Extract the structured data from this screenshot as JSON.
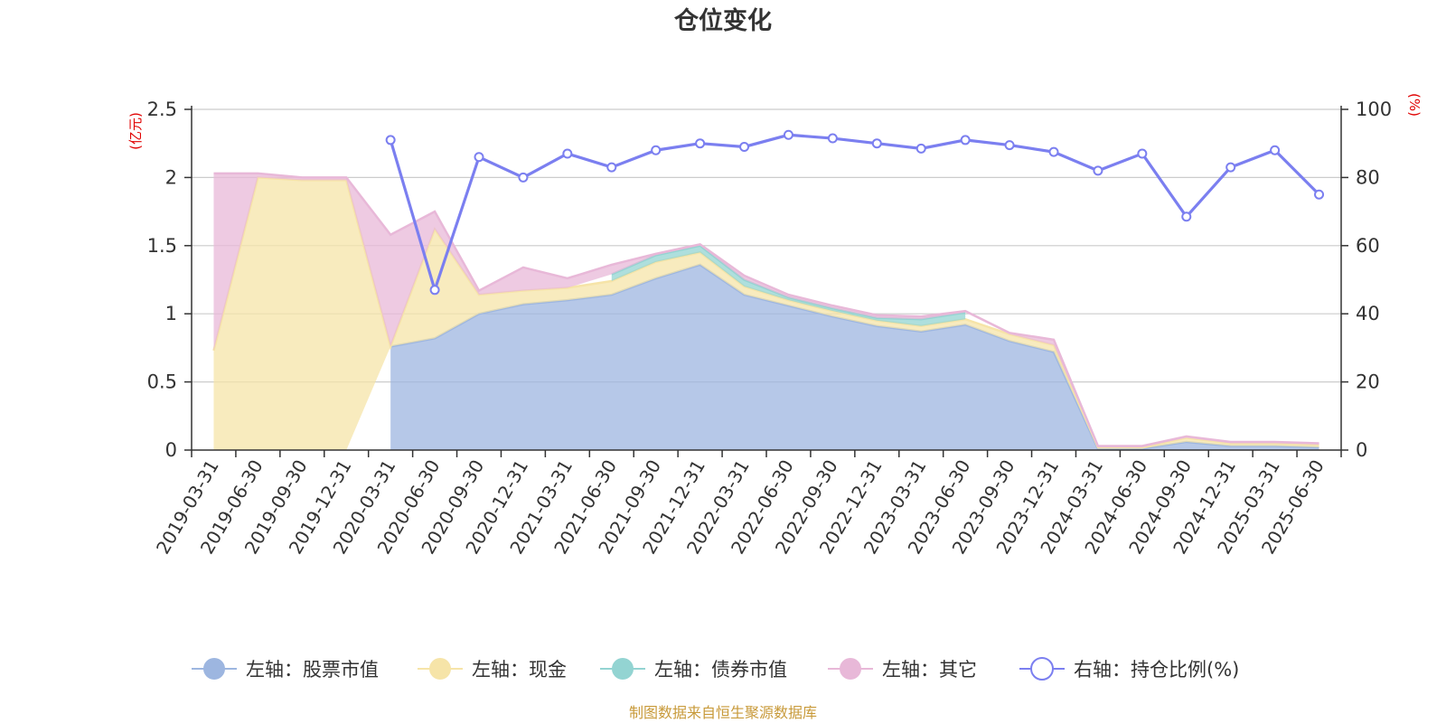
{
  "chart_data": {
    "type": "area",
    "title": "仓位变化",
    "left_axis": {
      "unit": "(亿元)",
      "ylim": [
        0,
        2.5
      ],
      "ticks": [
        "0",
        "0.5",
        "1",
        "1.5",
        "2",
        "2.5"
      ]
    },
    "right_axis": {
      "unit": "(%)",
      "ylim": [
        0,
        100
      ],
      "ticks": [
        "0",
        "20",
        "40",
        "60",
        "80",
        "100"
      ]
    },
    "categories": [
      "2019-03-31",
      "2019-06-30",
      "2019-09-30",
      "2019-12-31",
      "2020-03-31",
      "2020-06-30",
      "2020-09-30",
      "2020-12-31",
      "2021-03-31",
      "2021-06-30",
      "2021-09-30",
      "2021-12-31",
      "2022-03-31",
      "2022-06-30",
      "2022-09-30",
      "2022-12-31",
      "2023-03-31",
      "2023-06-30",
      "2023-09-30",
      "2023-12-31",
      "2024-03-31",
      "2024-06-30",
      "2024-09-30",
      "2024-12-31",
      "2025-03-31",
      "2025-06-30"
    ],
    "series": [
      {
        "name": "左轴：股票市值",
        "axis": "left",
        "color": "#9db6e0",
        "values": [
          null,
          null,
          null,
          null,
          0.76,
          0.82,
          1.0,
          1.07,
          1.1,
          1.14,
          1.26,
          1.36,
          1.14,
          1.06,
          0.98,
          0.91,
          0.87,
          0.92,
          0.8,
          0.72,
          0.01,
          0.01,
          0.06,
          0.03,
          0.03,
          0.02
        ]
      },
      {
        "name": "左轴：现金",
        "axis": "left",
        "color": "#f6e4a8",
        "values": [
          0.73,
          2.0,
          1.98,
          1.98,
          0.0,
          0.8,
          0.14,
          0.1,
          0.09,
          0.1,
          0.12,
          0.09,
          0.06,
          0.04,
          0.04,
          0.04,
          0.04,
          0.04,
          0.05,
          0.05,
          0.01,
          0.01,
          0.03,
          0.02,
          0.02,
          0.02
        ]
      },
      {
        "name": "左轴：债券市值",
        "axis": "left",
        "color": "#93d4d2",
        "values": [
          null,
          null,
          null,
          null,
          null,
          null,
          null,
          null,
          null,
          0.05,
          0.05,
          0.05,
          0.05,
          0.02,
          0.02,
          0.02,
          0.05,
          0.05,
          null,
          null,
          null,
          null,
          null,
          null,
          null,
          null
        ]
      },
      {
        "name": "左轴：其它",
        "axis": "left",
        "color": "#e8b8d8",
        "values": [
          1.3,
          0.03,
          0.02,
          0.02,
          0.82,
          0.13,
          0.03,
          0.17,
          0.07,
          0.07,
          0.01,
          0.01,
          0.03,
          0.02,
          0.02,
          0.02,
          0.02,
          0.01,
          0.01,
          0.04,
          0.01,
          0.01,
          0.01,
          0.01,
          0.01,
          0.01
        ]
      },
      {
        "name": "右轴：持仓比例(%)",
        "axis": "right",
        "color": "#7b7ff0",
        "values": [
          null,
          null,
          null,
          null,
          91,
          47,
          86,
          80,
          87,
          83,
          88,
          90,
          89,
          92.5,
          91.5,
          90,
          88.5,
          91,
          89.5,
          87.5,
          82,
          87,
          68.5,
          83,
          88,
          75
        ]
      }
    ],
    "grid": true,
    "legend_position": "bottom"
  },
  "footer": {
    "source": "制图数据来自恒生聚源数据库"
  }
}
